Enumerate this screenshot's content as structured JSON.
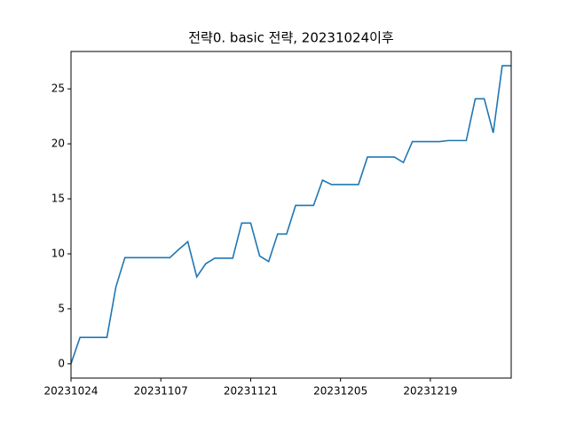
{
  "chart_data": {
    "type": "line",
    "title": "전략0. basic 전략, 20231024이후",
    "categories": [
      "20231024",
      null,
      null,
      null,
      null,
      null,
      null,
      null,
      null,
      null,
      "20231107",
      null,
      null,
      null,
      null,
      null,
      null,
      null,
      null,
      null,
      "20231121",
      null,
      null,
      null,
      null,
      null,
      null,
      null,
      null,
      null,
      "20231205",
      null,
      null,
      null,
      null,
      null,
      null,
      null,
      null,
      null,
      "20231219",
      null,
      null,
      null,
      null,
      null,
      null,
      null,
      null,
      null
    ],
    "series": [
      {
        "color": "#1f77b4",
        "values": [
          0,
          2.4,
          2.4,
          2.4,
          2.4,
          7.0,
          9.65,
          9.65,
          9.65,
          9.65,
          9.65,
          9.65,
          10.4,
          11.1,
          7.9,
          9.1,
          9.6,
          9.6,
          9.6,
          12.8,
          12.8,
          9.8,
          9.3,
          11.8,
          11.8,
          14.4,
          14.4,
          14.4,
          16.7,
          16.3,
          16.3,
          16.3,
          16.3,
          18.8,
          18.8,
          18.8,
          18.8,
          18.3,
          20.2,
          20.2,
          20.2,
          20.2,
          20.3,
          20.3,
          20.3,
          24.1,
          24.1,
          21.0,
          27.1,
          27.1
        ]
      }
    ],
    "ylim": [
      -1.3,
      28.4
    ],
    "yticks": [
      0,
      5,
      10,
      15,
      20,
      25
    ]
  }
}
